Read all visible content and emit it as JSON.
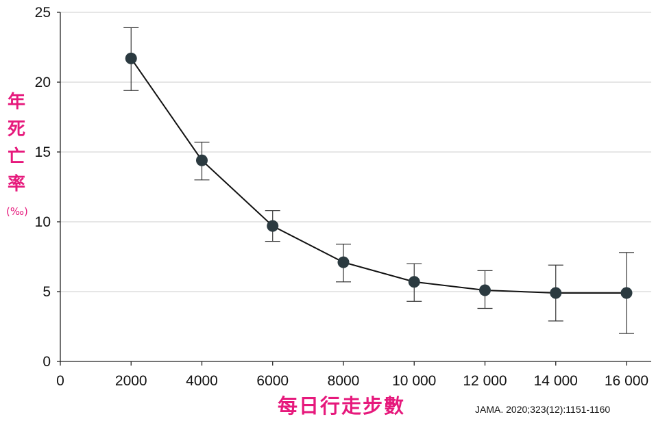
{
  "chart_data": {
    "type": "line",
    "x": [
      2000,
      4000,
      6000,
      8000,
      10000,
      12000,
      14000,
      16000
    ],
    "y": [
      21.7,
      14.4,
      9.7,
      7.1,
      5.7,
      5.1,
      4.9,
      4.9
    ],
    "err_low": [
      19.4,
      13.0,
      8.6,
      5.7,
      4.3,
      3.8,
      2.9,
      2.0
    ],
    "err_high": [
      23.9,
      15.7,
      10.8,
      8.4,
      7.0,
      6.5,
      6.9,
      7.8
    ],
    "xlim": [
      0,
      16500
    ],
    "ylim": [
      0,
      25
    ],
    "xticks": [
      0,
      2000,
      4000,
      6000,
      8000,
      10000,
      12000,
      14000,
      16000
    ],
    "xtick_labels": [
      "0",
      "2000",
      "4000",
      "6000",
      "8000",
      "10 000",
      "12 000",
      "14 000",
      "16 000"
    ],
    "yticks": [
      0,
      5,
      10,
      15,
      20,
      25
    ],
    "ytick_labels": [
      "0",
      "5",
      "10",
      "15",
      "20",
      "25"
    ],
    "ylabel_chars": [
      "年",
      "死",
      "亡",
      "率"
    ],
    "ylabel_unit": "(‰)",
    "xlabel": "每日行走步數",
    "source": "JAMA. 2020;323(12):1151-1160",
    "grid": "horizontal",
    "colors": {
      "marker": "#2b3a40",
      "line": "#111111",
      "label": "#e6197c",
      "grid": "#d6d6d6"
    }
  }
}
